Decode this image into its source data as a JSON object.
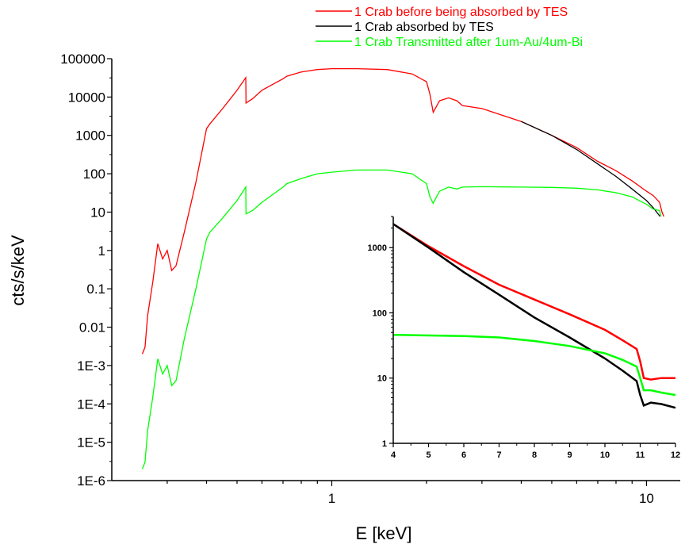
{
  "chart_data": [
    {
      "type": "line",
      "title": "",
      "xlabel": "E [keV]",
      "ylabel": "cts/s/keV",
      "xscale": "log",
      "yscale": "log",
      "xlim": [
        0.2,
        12.8
      ],
      "ylim": [
        1e-06,
        100000
      ],
      "x_tick_labels": [
        {
          "value": 1,
          "label": "1"
        },
        {
          "value": 10,
          "label": "10"
        }
      ],
      "y_tick_labels": [
        "1E-6",
        "1E-5",
        "1E-4",
        "1E-3",
        "0.01",
        "0.1",
        "1",
        "10",
        "100",
        "1000",
        "10000",
        "100000"
      ],
      "grid": false,
      "legend_position": "top-right, outside plot area",
      "series": [
        {
          "name": "1 Crab before being absorbed by TES",
          "color": "#ff0000",
          "x": [
            0.25,
            0.255,
            0.26,
            0.27,
            0.28,
            0.29,
            0.3,
            0.31,
            0.32,
            0.34,
            0.37,
            0.4,
            0.41,
            0.45,
            0.5,
            0.533,
            0.534,
            0.56,
            0.6,
            0.7,
            0.72,
            0.8,
            0.9,
            1.0,
            1.2,
            1.5,
            1.8,
            2.0,
            2.05,
            2.1,
            2.2,
            2.35,
            2.5,
            2.6,
            3.0,
            4.0,
            5.0,
            6.0,
            7.0,
            8.0,
            9.0,
            10.0,
            10.5,
            11.0,
            11.2,
            11.6,
            12.0
          ],
          "y": [
            0.002,
            0.003,
            0.02,
            0.15,
            1.5,
            0.6,
            1.0,
            0.3,
            0.4,
            3,
            60,
            1500,
            2000,
            5000,
            15000,
            32000,
            7000,
            9000,
            15000,
            30000,
            35000,
            45000,
            52000,
            55000,
            55000,
            52000,
            40000,
            25000,
            12000,
            4000,
            8000,
            9500,
            8000,
            6000,
            5000,
            2300,
            1000,
            480,
            210,
            120,
            65,
            35,
            27,
            18,
            10,
            5,
            3
          ]
        },
        {
          "name": "1 Crab absorbed by TES",
          "color": "#000000",
          "x": [
            4.0,
            5.0,
            6.0,
            7.0,
            8.0,
            9.0,
            10.0,
            10.5,
            11.0,
            11.2,
            11.6,
            12.0
          ],
          "y": [
            2300,
            1000,
            430,
            180,
            85,
            40,
            20,
            13,
            8,
            3.8,
            3.5,
            2.5
          ]
        },
        {
          "name": "1 Crab Transmitted after 1um-Au/4um-Bi",
          "color": "#00ff00",
          "x": [
            0.25,
            0.255,
            0.26,
            0.27,
            0.28,
            0.29,
            0.3,
            0.31,
            0.32,
            0.34,
            0.37,
            0.4,
            0.41,
            0.45,
            0.5,
            0.533,
            0.534,
            0.56,
            0.6,
            0.7,
            0.72,
            0.8,
            0.9,
            1.0,
            1.2,
            1.5,
            1.8,
            2.0,
            2.05,
            2.1,
            2.2,
            2.35,
            2.5,
            2.6,
            3.0,
            4.0,
            5.0,
            6.0,
            7.0,
            8.0,
            9.0,
            10.0,
            10.5,
            11.0,
            11.2,
            11.6,
            12.0
          ],
          "y": [
            2e-06,
            3e-06,
            2e-05,
            0.00015,
            0.0015,
            0.0006,
            0.001,
            0.0003,
            0.0004,
            0.005,
            0.1,
            2,
            3,
            7,
            20,
            45,
            9,
            11,
            18,
            45,
            55,
            75,
            100,
            110,
            125,
            125,
            100,
            55,
            25,
            17,
            35,
            45,
            40,
            45,
            46,
            45,
            44,
            42,
            38,
            32,
            25,
            16,
            12,
            11,
            6,
            5,
            4
          ]
        }
      ]
    },
    {
      "type": "line",
      "title": "",
      "xlabel": "",
      "ylabel": "",
      "xscale": "linear",
      "yscale": "log",
      "xlim": [
        4,
        12
      ],
      "ylim": [
        1,
        3000
      ],
      "x_tick_labels": [
        "4",
        "5",
        "6",
        "7",
        "8",
        "9",
        "10",
        "11",
        "12"
      ],
      "y_tick_labels": [
        "1",
        "10",
        "100",
        "1000"
      ],
      "grid": false,
      "legend_position": "none (inset)",
      "series": [
        {
          "color": "#ff0000",
          "x": [
            4.0,
            5.0,
            6.0,
            7.0,
            8.0,
            9.0,
            10.0,
            10.5,
            10.9,
            11.0,
            11.1,
            11.3,
            11.6,
            12.0
          ],
          "y": [
            2300,
            1050,
            520,
            270,
            160,
            95,
            55,
            38,
            28,
            18,
            10,
            9.5,
            10,
            10
          ]
        },
        {
          "color": "#000000",
          "x": [
            4.0,
            5.0,
            6.0,
            7.0,
            8.0,
            9.0,
            10.0,
            10.5,
            10.9,
            11.0,
            11.1,
            11.3,
            11.6,
            12.0
          ],
          "y": [
            2300,
            1000,
            420,
            190,
            85,
            42,
            20,
            13,
            9,
            5.5,
            3.8,
            4.2,
            4,
            3.5
          ]
        },
        {
          "color": "#00ff00",
          "x": [
            4.0,
            5.0,
            6.0,
            7.0,
            8.0,
            9.0,
            10.0,
            10.5,
            10.9,
            11.0,
            11.1,
            11.3,
            11.6,
            12.0
          ],
          "y": [
            46,
            45,
            44,
            42,
            37,
            31,
            24,
            19,
            15,
            10,
            6.5,
            6.5,
            6,
            5.5
          ]
        }
      ]
    }
  ]
}
